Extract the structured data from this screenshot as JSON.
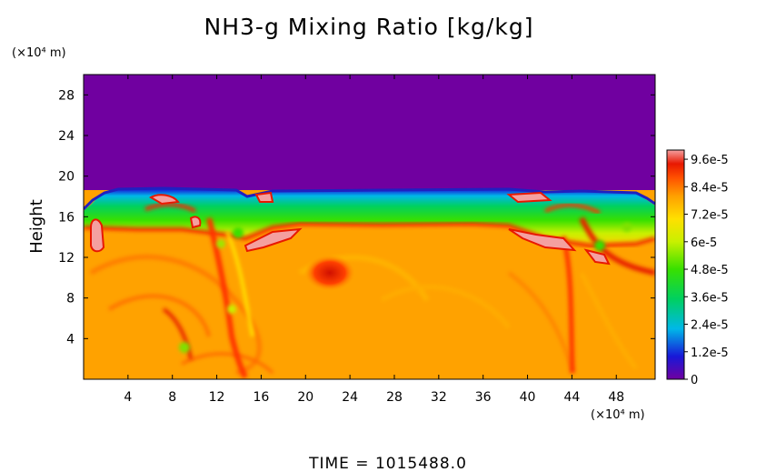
{
  "chart_data": {
    "type": "heatmap",
    "title": "NH3-g Mixing Ratio [kg/kg]",
    "xlabel": "",
    "x_unit": "(×10⁴ m)",
    "ylabel": "Height",
    "y_unit": "(×10⁴ m)",
    "xlim": [
      0,
      51.5
    ],
    "ylim": [
      0,
      30
    ],
    "x_ticks": [
      4,
      8,
      12,
      16,
      20,
      24,
      28,
      32,
      36,
      40,
      44,
      48
    ],
    "y_ticks": [
      4,
      8,
      12,
      16,
      20,
      24,
      28
    ],
    "grid": false,
    "colorbar": {
      "min": 0,
      "max": 0.0001,
      "tick_values": [
        0,
        1.2e-05,
        2.4e-05,
        3.6e-05,
        4.8e-05,
        6e-05,
        7.2e-05,
        8.4e-05,
        9.6e-05
      ],
      "tick_labels": [
        "0",
        "1.2e-5",
        "2.4e-5",
        "3.6e-5",
        "4.8e-5",
        "6e-5",
        "7.2e-5",
        "8.4e-5",
        "9.6e-5"
      ],
      "colors": [
        "#7000a0",
        "#1818d8",
        "#00b8e8",
        "#00d060",
        "#38e000",
        "#c8f000",
        "#ffe000",
        "#ffa000",
        "#ff5000",
        "#e81800",
        "#f4a0a0"
      ]
    },
    "regions": [
      {
        "name": "upper",
        "y_range": [
          18.5,
          30
        ],
        "value": 0
      },
      {
        "name": "band",
        "y_range": [
          15.5,
          18
        ],
        "value": 5.5e-05
      },
      {
        "name": "lower",
        "y_range": [
          0,
          14.5
        ],
        "value": 7.8e-05
      }
    ],
    "features": [
      {
        "x": 22.5,
        "y": 10,
        "value": 9e-05
      },
      {
        "x": 2,
        "y": 14,
        "value": 9.8e-05
      },
      {
        "x": 15.5,
        "y": 13.5,
        "value": 9.8e-05
      },
      {
        "x": 40,
        "y": 13.5,
        "value": 9.8e-05
      },
      {
        "x": 47.5,
        "y": 12,
        "value": 9.8e-05
      },
      {
        "x": 18,
        "y": 17.5,
        "value": 9.8e-05
      },
      {
        "x": 40,
        "y": 17.5,
        "value": 9.8e-05
      }
    ]
  },
  "time_label": "TIME  =  1015488.0"
}
